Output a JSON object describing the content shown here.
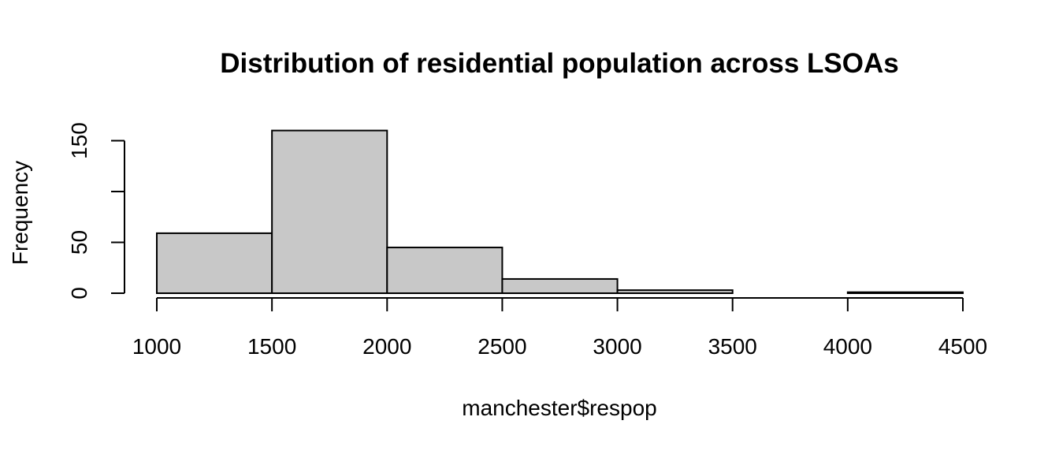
{
  "chart_data": {
    "type": "bar",
    "title": "Distribution of residential population across LSOAs",
    "xlabel": "manchester$respop",
    "ylabel": "Frequency",
    "bins": [
      {
        "from": 1000,
        "to": 1500,
        "count": 59
      },
      {
        "from": 1500,
        "to": 2000,
        "count": 160
      },
      {
        "from": 2000,
        "to": 2500,
        "count": 45
      },
      {
        "from": 2500,
        "to": 3000,
        "count": 14
      },
      {
        "from": 3000,
        "to": 3500,
        "count": 3
      },
      {
        "from": 3500,
        "to": 4000,
        "count": 0
      },
      {
        "from": 4000,
        "to": 4500,
        "count": 1
      }
    ],
    "xlim": [
      1000,
      4500
    ],
    "ylim": [
      0,
      160
    ],
    "xticks": [
      "1000",
      "1500",
      "2000",
      "2500",
      "3000",
      "3500",
      "4000",
      "4500"
    ],
    "yticks": [
      "0",
      "50",
      "100",
      "150"
    ],
    "ytick_labels": [
      "0",
      "50",
      "",
      "150"
    ],
    "bar_color": "#c8c8c8",
    "grid": false,
    "legend": "none"
  }
}
